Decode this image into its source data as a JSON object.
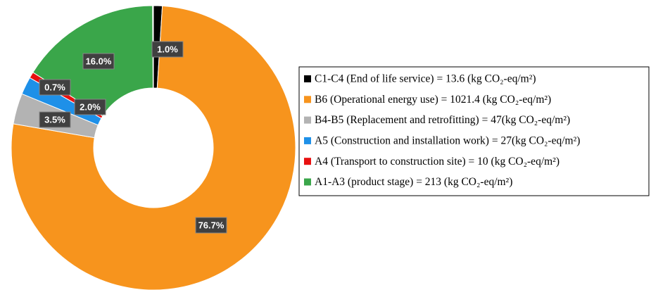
{
  "chart_data": {
    "type": "donut",
    "series": [
      {
        "name": "C1-C4 (End of life service) = 13.6 (kg CO₂-eq/m²)",
        "color": "#000000"
      },
      {
        "name": "B6 (Operational energy use) = 1021.4 (kg CO₂-eq/m²)",
        "color": "#f7941d"
      },
      {
        "name": "B4-B5 (Replacement and retrofitting) = 47(kg CO₂-eq/m²)",
        "color": "#b3b3b3"
      },
      {
        "name": "A5 (Construction and installation work) = 27(kg CO₂-eq/m²)",
        "color": "#1e90e8"
      },
      {
        "name": "A4 (Transport to construction site) = 10 (kg CO₂-eq/m²)",
        "color": "#e81010"
      },
      {
        "name": "A1-A3 (product stage) = 213 (kg CO₂-eq/m²)",
        "color": "#3aa64a"
      }
    ],
    "values": [
      1.0,
      76.7,
      3.5,
      2.0,
      0.7,
      16.0
    ],
    "value_labels": [
      "1.0%",
      "76.7%",
      "3.5%",
      "2.0%",
      "0.7%",
      "16.0%"
    ],
    "legend": "right"
  }
}
